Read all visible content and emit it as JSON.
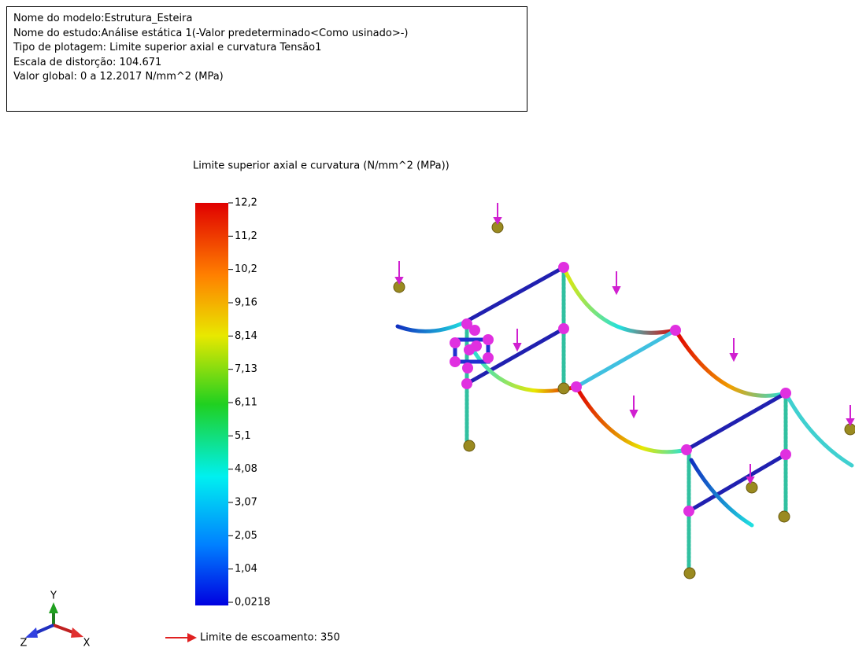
{
  "info_box": {
    "lines": [
      "Nome do modelo:Estrutura_Esteira",
      "Nome do estudo:Análise estática 1(-Valor predeterminado<Como usinado>-)",
      "Tipo de plotagem: Limite superior axial e curvatura Tensão1",
      "Escala de distorção: 104.671",
      "Valor global: 0 a 12.2017 N/mm^2 (MPa)"
    ]
  },
  "legend": {
    "title": "Limite superior axial e curvatura (N/mm^2 (MPa))",
    "ticks": [
      "12,2",
      "11,2",
      "10,2",
      "9,16",
      "8,14",
      "7,13",
      "6,11",
      "5,1",
      "4,08",
      "3,07",
      "2,05",
      "1,04",
      "0,0218"
    ]
  },
  "yield_limit": "Limite de escoamento: 350",
  "triad": {
    "y": "Y",
    "z": "Z",
    "x": "X"
  }
}
